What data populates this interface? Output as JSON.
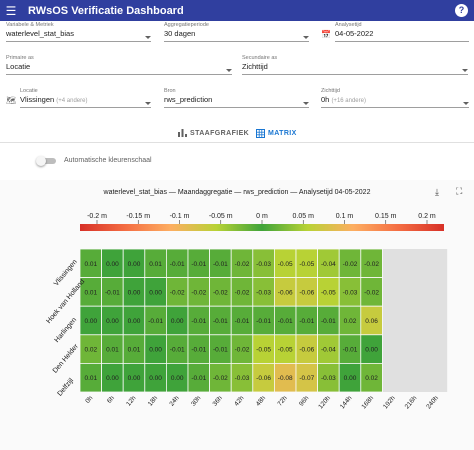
{
  "app": {
    "title": "RWsOS Verificatie Dashboard",
    "menu_icon": "menu-icon",
    "help_icon": "help-icon"
  },
  "filters": {
    "variable": {
      "label": "Variabele & Metriek",
      "value": "waterlevel_stat_bias"
    },
    "aggregation": {
      "label": "Aggregatieperiode",
      "value": "30 dagen"
    },
    "analysis_time": {
      "label": "Analysetijd",
      "value": "04-05-2022",
      "icon": "calendar-icon"
    },
    "primary_axis": {
      "label": "Primaire as",
      "value": "Locatie"
    },
    "secondary_axis": {
      "label": "Secundaire as",
      "value": "Zichttijd"
    },
    "location": {
      "label": "Locatie",
      "value": "Vlissingen",
      "extra": "(+4 andere)",
      "icon": "map-icon"
    },
    "source": {
      "label": "Bron",
      "value": "rws_prediction"
    },
    "lead_time": {
      "label": "Zichttijd",
      "value": "0h",
      "extra": "(+16 andere)"
    }
  },
  "tabs": [
    {
      "label": "STAAFGRAFIEK",
      "icon": "bar-chart-icon",
      "active": false
    },
    {
      "label": "MATRIX",
      "icon": "grid-icon",
      "active": true
    }
  ],
  "toggle": {
    "label": "Automatische kleurenschaal",
    "on": false
  },
  "chart_data": {
    "type": "heatmap",
    "title": "waterlevel_stat_bias — Maandaggregatie — rws_prediction — Analysetijd 04-05-2022",
    "colorbar": {
      "tick_labels": [
        "-0.2 m",
        "-0.15 m",
        "-0.1 m",
        "-0.05 m",
        "0 m",
        "0.05 m",
        "0.1 m",
        "0.15 m",
        "0.2 m"
      ],
      "range": [
        -0.2,
        0.2
      ],
      "colors": [
        "#d73027",
        "#f46d43",
        "#fdae61",
        "#b8d235",
        "#3fa33a",
        "#b8d235",
        "#fdae61",
        "#f46d43",
        "#d73027"
      ]
    },
    "x_categories": [
      "0h",
      "6h",
      "12h",
      "18h",
      "24h",
      "30h",
      "36h",
      "42h",
      "48h",
      "72h",
      "96h",
      "120h",
      "144h",
      "168h",
      "192h",
      "216h",
      "240h"
    ],
    "y_categories": [
      "Vlissingen",
      "Hoek van Holland",
      "Harlingen",
      "Den Helder",
      "Delfzijl"
    ],
    "values": [
      [
        0.01,
        0.0,
        0.0,
        0.01,
        -0.01,
        -0.01,
        -0.01,
        -0.02,
        -0.03,
        -0.05,
        -0.05,
        -0.04,
        -0.02,
        -0.02,
        null,
        null,
        null
      ],
      [
        0.01,
        -0.01,
        0.0,
        0.0,
        -0.02,
        -0.02,
        -0.02,
        -0.02,
        -0.03,
        -0.06,
        -0.06,
        -0.05,
        -0.03,
        -0.02,
        null,
        null,
        null
      ],
      [
        0.0,
        0.0,
        0.0,
        -0.01,
        0.0,
        -0.01,
        -0.01,
        -0.01,
        -0.01,
        -0.01,
        -0.01,
        -0.01,
        0.02,
        0.06,
        null,
        null,
        null
      ],
      [
        0.02,
        0.01,
        0.01,
        0.0,
        -0.01,
        -0.01,
        -0.01,
        -0.02,
        -0.05,
        -0.05,
        -0.06,
        -0.04,
        -0.01,
        0.0,
        null,
        null,
        null
      ],
      [
        0.01,
        0.0,
        0.0,
        0.0,
        0.0,
        -0.01,
        -0.02,
        -0.03,
        -0.06,
        -0.08,
        -0.07,
        -0.03,
        0.0,
        0.02,
        null,
        null,
        null
      ]
    ],
    "missing_color": "#e0e0e0"
  }
}
